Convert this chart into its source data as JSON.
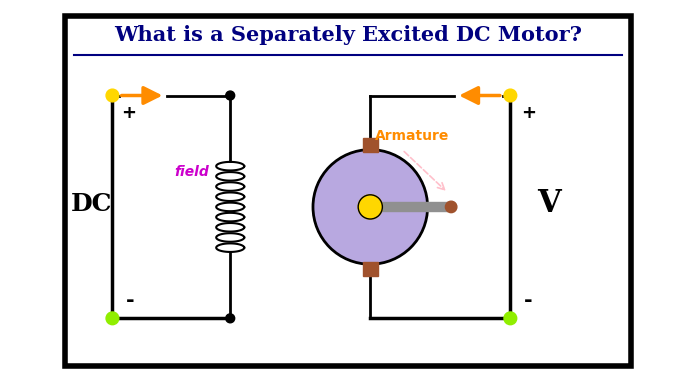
{
  "title": "What is a Separately Excited DC Motor?",
  "title_fontsize": 15,
  "title_color": "#000080",
  "background_color": "#ffffff",
  "box_facecolor": "#ffffff",
  "box_color": "#000000",
  "dc_label": "DC",
  "v_label": "V",
  "field_label": "field",
  "armature_label": "Armature",
  "arrow_color": "#FF8C00",
  "wire_color": "#000000",
  "dot_color_yellow": "#FFD700",
  "dot_color_green": "#90EE00",
  "motor_body_color": "#B8A8E0",
  "motor_brush_color": "#A0522D",
  "motor_shaft_color": "#909090",
  "motor_hub_color": "#FFD700",
  "field_label_color": "#CC00CC",
  "armature_label_color": "#FF8C00",
  "plus_minus_color": "#000000"
}
